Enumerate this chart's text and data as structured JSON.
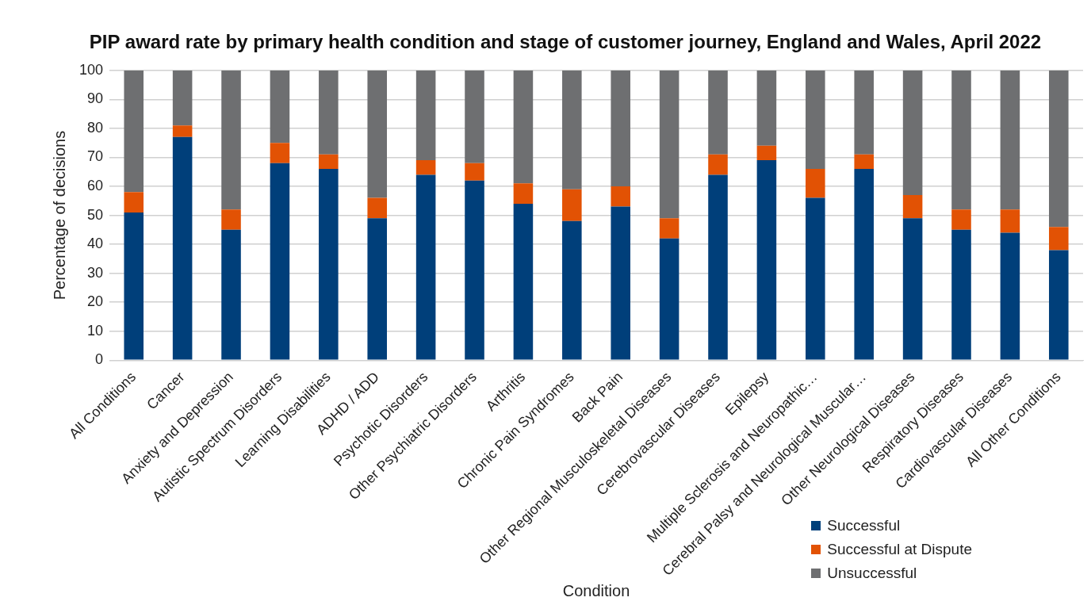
{
  "chart_data": {
    "type": "bar",
    "title": "PIP award rate by primary health condition and stage of customer journey, England and Wales, April 2022",
    "xlabel": "Condition",
    "ylabel": "Percentage of decisions",
    "categories": [
      "All Conditions",
      "Cancer",
      "Anxiety and Depression",
      "Autistic Spectrum Disorders",
      "Learning Disabilities",
      "ADHD / ADD",
      "Psychotic Disorders",
      "Other Psychiatric Disorders",
      "Arthritis",
      "Chronic Pain Syndromes",
      "Back Pain",
      "Other Regional Musculoskeletal Diseases",
      "Cerebrovascular Diseases",
      "Epilepsy",
      "Multiple Sclerosis and Neuropathic…",
      "Cerebral Palsy and Neurological Muscular…",
      "Other Neurological Diseases",
      "Respiratory Diseases",
      "Cardiovascular Diseases",
      "All Other Conditions"
    ],
    "series": [
      {
        "name": "Successful",
        "color": "#003f7a",
        "values": [
          51,
          77,
          45,
          68,
          66,
          49,
          64,
          62,
          54,
          48,
          53,
          42,
          64,
          69,
          56,
          66,
          49,
          45,
          44,
          38
        ]
      },
      {
        "name": "Successful at Dispute",
        "color": "#e25204",
        "values": [
          7,
          4,
          7,
          7,
          5,
          7,
          5,
          6,
          7,
          11,
          7,
          7,
          7,
          5,
          10,
          5,
          8,
          7,
          8,
          8
        ]
      },
      {
        "name": "Unsuccessful",
        "color": "#6e6f71",
        "values": [
          42,
          19,
          48,
          25,
          29,
          44,
          31,
          32,
          39,
          41,
          40,
          51,
          29,
          26,
          34,
          29,
          43,
          48,
          48,
          54
        ]
      }
    ],
    "stacked": true,
    "ylim": [
      0,
      100
    ],
    "yticks": [
      0,
      10,
      20,
      30,
      40,
      50,
      60,
      70,
      80,
      90,
      100
    ],
    "grid": "y",
    "legend": "bottom right"
  }
}
